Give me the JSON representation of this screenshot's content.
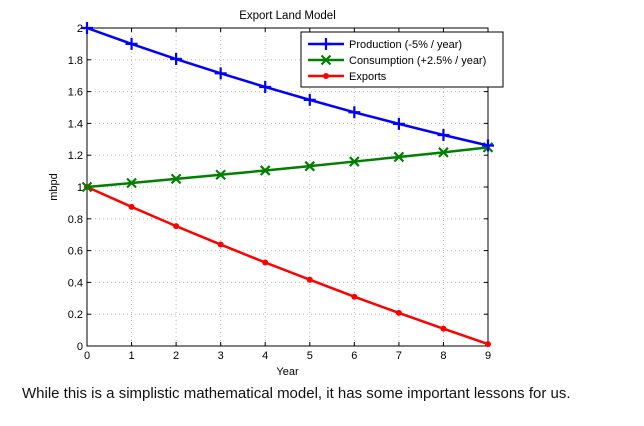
{
  "chart_data": {
    "type": "line",
    "title": "Export Land Model",
    "xlabel": "Year",
    "ylabel": "mbpd",
    "x": [
      0,
      1,
      2,
      3,
      4,
      5,
      6,
      7,
      8,
      9
    ],
    "xlim": [
      0,
      9
    ],
    "ylim": [
      0,
      2
    ],
    "xticks": [
      "0",
      "1",
      "2",
      "3",
      "4",
      "5",
      "6",
      "7",
      "8",
      "9"
    ],
    "yticks": [
      "0",
      "0.2",
      "0.4",
      "0.6",
      "0.8",
      "1",
      "1.2",
      "1.4",
      "1.6",
      "1.8",
      "2"
    ],
    "grid": true,
    "legend_position": "top-right",
    "series": [
      {
        "name": "Production (-5% / year)",
        "color": "#0000ff",
        "marker": "plus",
        "values": [
          2.0,
          1.9,
          1.805,
          1.715,
          1.629,
          1.548,
          1.47,
          1.397,
          1.327,
          1.261
        ]
      },
      {
        "name": "Consumption (+2.5% / year)",
        "color": "#008000",
        "marker": "x",
        "values": [
          1.0,
          1.025,
          1.051,
          1.077,
          1.104,
          1.131,
          1.16,
          1.189,
          1.218,
          1.249
        ]
      },
      {
        "name": "Exports",
        "color": "#ff0000",
        "marker": "dot",
        "values": [
          1.0,
          0.875,
          0.754,
          0.638,
          0.525,
          0.417,
          0.31,
          0.208,
          0.109,
          0.012
        ]
      }
    ]
  },
  "caption": "While this is a simplistic mathematical model, it has some important lessons for us."
}
